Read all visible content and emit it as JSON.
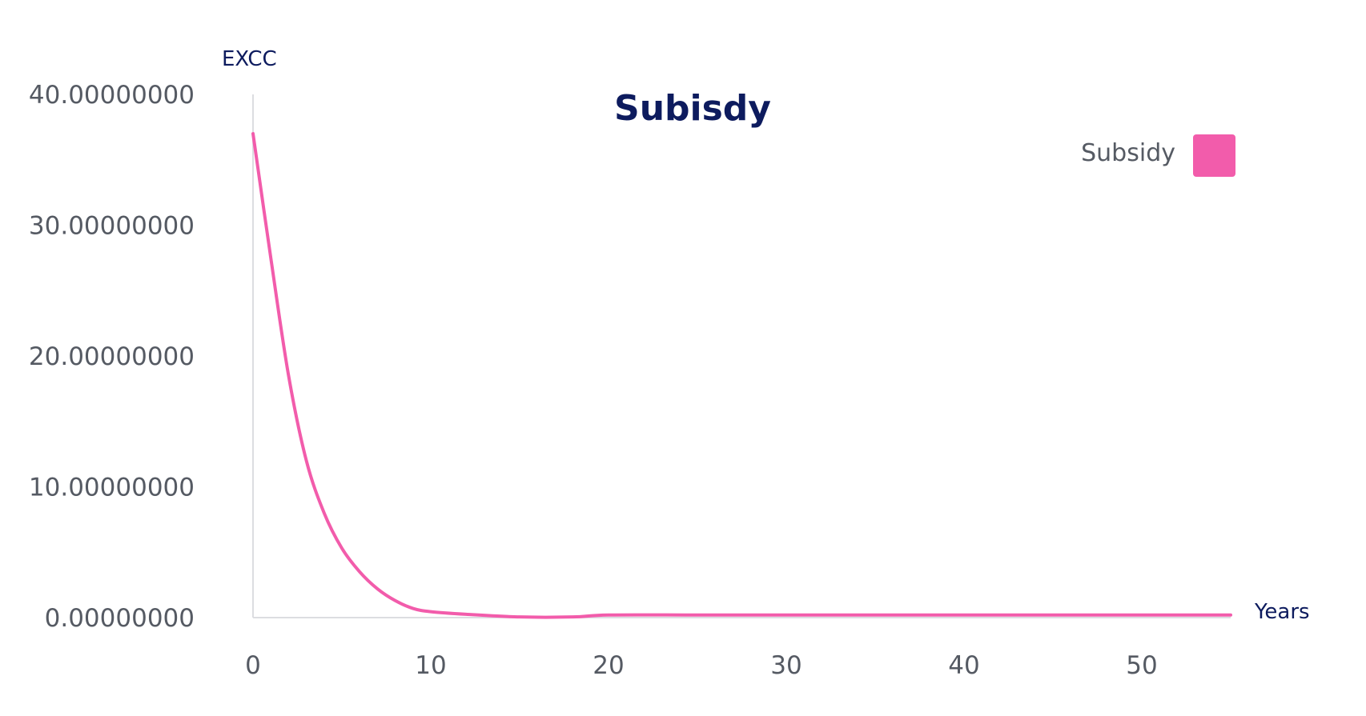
{
  "chart_data": {
    "type": "line",
    "title": "Subisdy",
    "ylabel": "EXCC",
    "xlabel": "Years",
    "ylim": [
      0,
      40
    ],
    "xlim": [
      0,
      55
    ],
    "y_ticks": [
      0,
      10,
      20,
      30,
      40
    ],
    "y_tick_labels": [
      "0.00000000",
      "10.00000000",
      "20.00000000",
      "30.00000000",
      "40.00000000"
    ],
    "x_ticks": [
      0,
      10,
      20,
      30,
      40,
      50
    ],
    "x_tick_labels": [
      "0",
      "10",
      "20",
      "30",
      "40",
      "50"
    ],
    "legend_position": "top-right",
    "grid": false,
    "series": [
      {
        "name": "Subsidy",
        "color": "#f25cab",
        "x": [
          0,
          1,
          2,
          3,
          4,
          5,
          6,
          7,
          8,
          9,
          10,
          12,
          15,
          18,
          20,
          25,
          30,
          35,
          40,
          45,
          50,
          55
        ],
        "y": [
          37.0,
          27.5,
          18.5,
          12.0,
          8.0,
          5.3,
          3.5,
          2.2,
          1.3,
          0.7,
          0.45,
          0.25,
          0.05,
          0.05,
          0.2,
          0.2,
          0.2,
          0.2,
          0.2,
          0.2,
          0.2,
          0.2
        ]
      }
    ]
  }
}
